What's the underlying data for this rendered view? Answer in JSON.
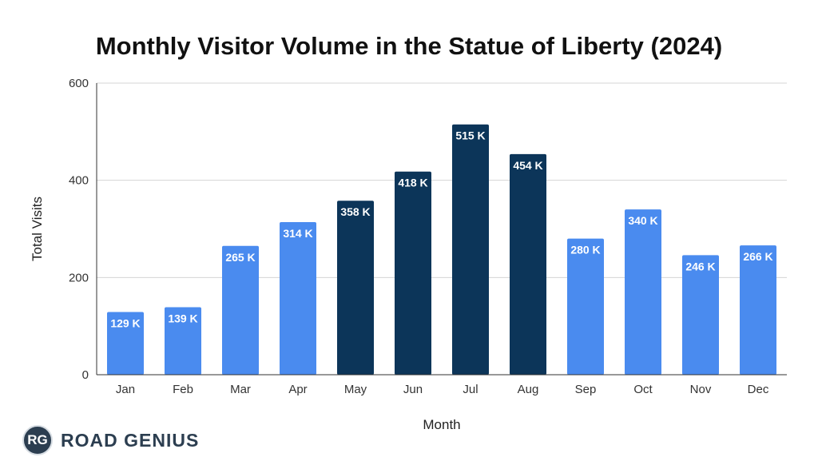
{
  "chart_data": {
    "type": "bar",
    "title": "Monthly Visitor Volume in the Statue of Liberty (2024)",
    "xlabel": "Month",
    "ylabel": "Total Visits",
    "categories": [
      "Jan",
      "Feb",
      "Mar",
      "Apr",
      "May",
      "Jun",
      "Jul",
      "Aug",
      "Sep",
      "Oct",
      "Nov",
      "Dec"
    ],
    "values": [
      129,
      139,
      265,
      314,
      358,
      418,
      515,
      454,
      280,
      340,
      246,
      266
    ],
    "data_labels": [
      "129 K",
      "139 K",
      "265 K",
      "314 K",
      "358 K",
      "418 K",
      "515 K",
      "454 K",
      "280 K",
      "340 K",
      "246 K",
      "266 K"
    ],
    "highlighted": [
      false,
      false,
      false,
      false,
      true,
      true,
      true,
      true,
      false,
      false,
      false,
      false
    ],
    "ylim": [
      0,
      600
    ],
    "yticks": [
      0,
      200,
      400,
      600
    ],
    "grid": true,
    "legend": "none",
    "colors": {
      "bar": "#4a8bef",
      "highlight": "#0c3559",
      "grid": "#d4d4d4",
      "axis": "#333333"
    }
  },
  "branding": {
    "logo_text": "RG",
    "name": "ROAD GENIUS"
  }
}
